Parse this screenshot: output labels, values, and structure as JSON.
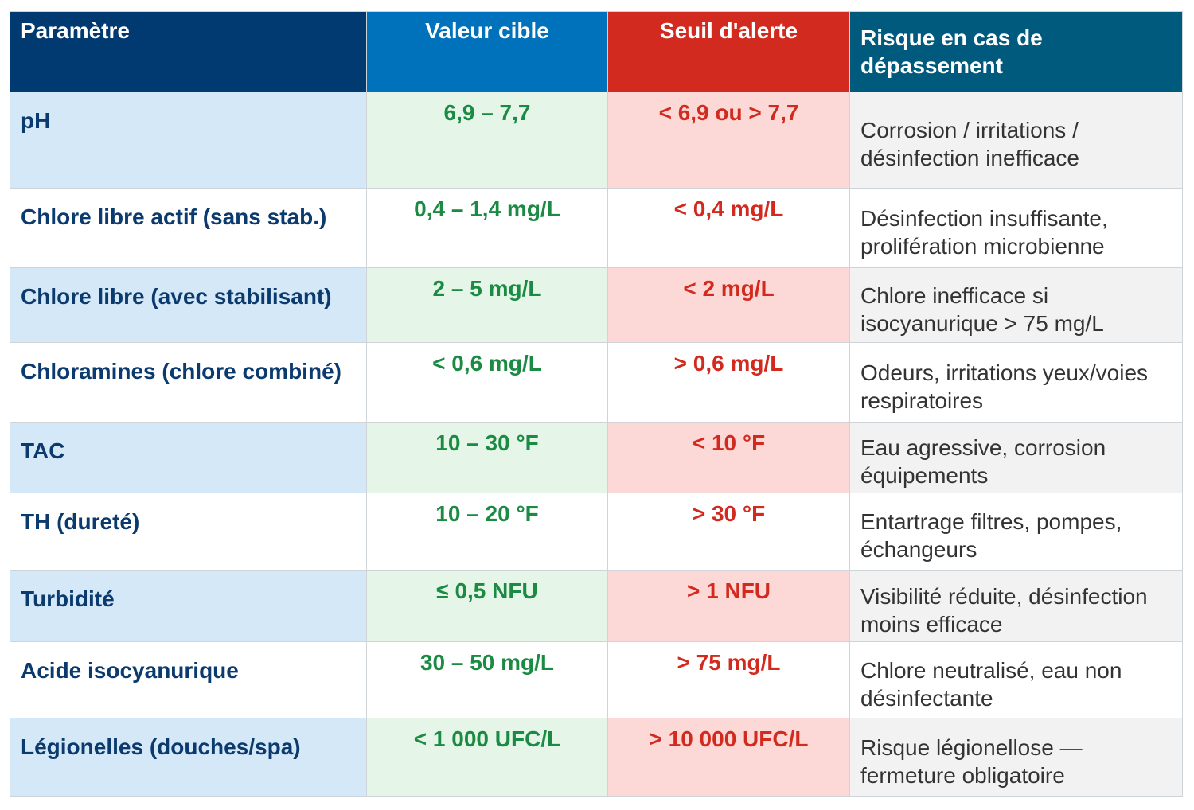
{
  "table": {
    "header": [
      "Paramètre",
      "Valeur cible",
      "Seuil d'alerte",
      "Risque en cas de dépassement"
    ],
    "rows": [
      [
        "pH",
        "6,9 – 7,7",
        "< 6,9 ou > 7,7",
        "Corrosion / irritations / désinfection inefficace"
      ],
      [
        "Chlore libre actif (sans stab.)",
        "0,4 – 1,4 mg/L",
        "< 0,4 mg/L",
        "Désinfection insuffisante, prolifération microbienne"
      ],
      [
        "Chlore libre (avec stabilisant)",
        "2 – 5 mg/L",
        "< 2 mg/L",
        "Chlore inefficace si isocyanurique > 75 mg/L"
      ],
      [
        "Chloramines (chlore combiné)",
        "< 0,6 mg/L",
        "> 0,6 mg/L",
        "Odeurs, irritations yeux/voies respiratoires"
      ],
      [
        "TAC",
        "10 – 30 °F",
        "< 10 °F",
        "Eau agressive, corrosion équipements"
      ],
      [
        "TH (dureté)",
        "10 – 20 °F",
        "> 30 °F",
        "Entartrage filtres, pompes, échangeurs"
      ],
      [
        "Turbidité",
        "≤ 0,5 NFU",
        "> 1 NFU",
        "Visibilité réduite, désinfection moins efficace"
      ],
      [
        "Acide isocyanurique",
        "30 – 50 mg/L",
        "> 75 mg/L",
        "Chlore neutralisé, eau non désinfectante"
      ],
      [
        "Légionelles (douches/spa)",
        "< 1 000 UFC/L",
        "> 10 000 UFC/L",
        "Risque légionellose — fermeture obligatoire"
      ]
    ]
  }
}
